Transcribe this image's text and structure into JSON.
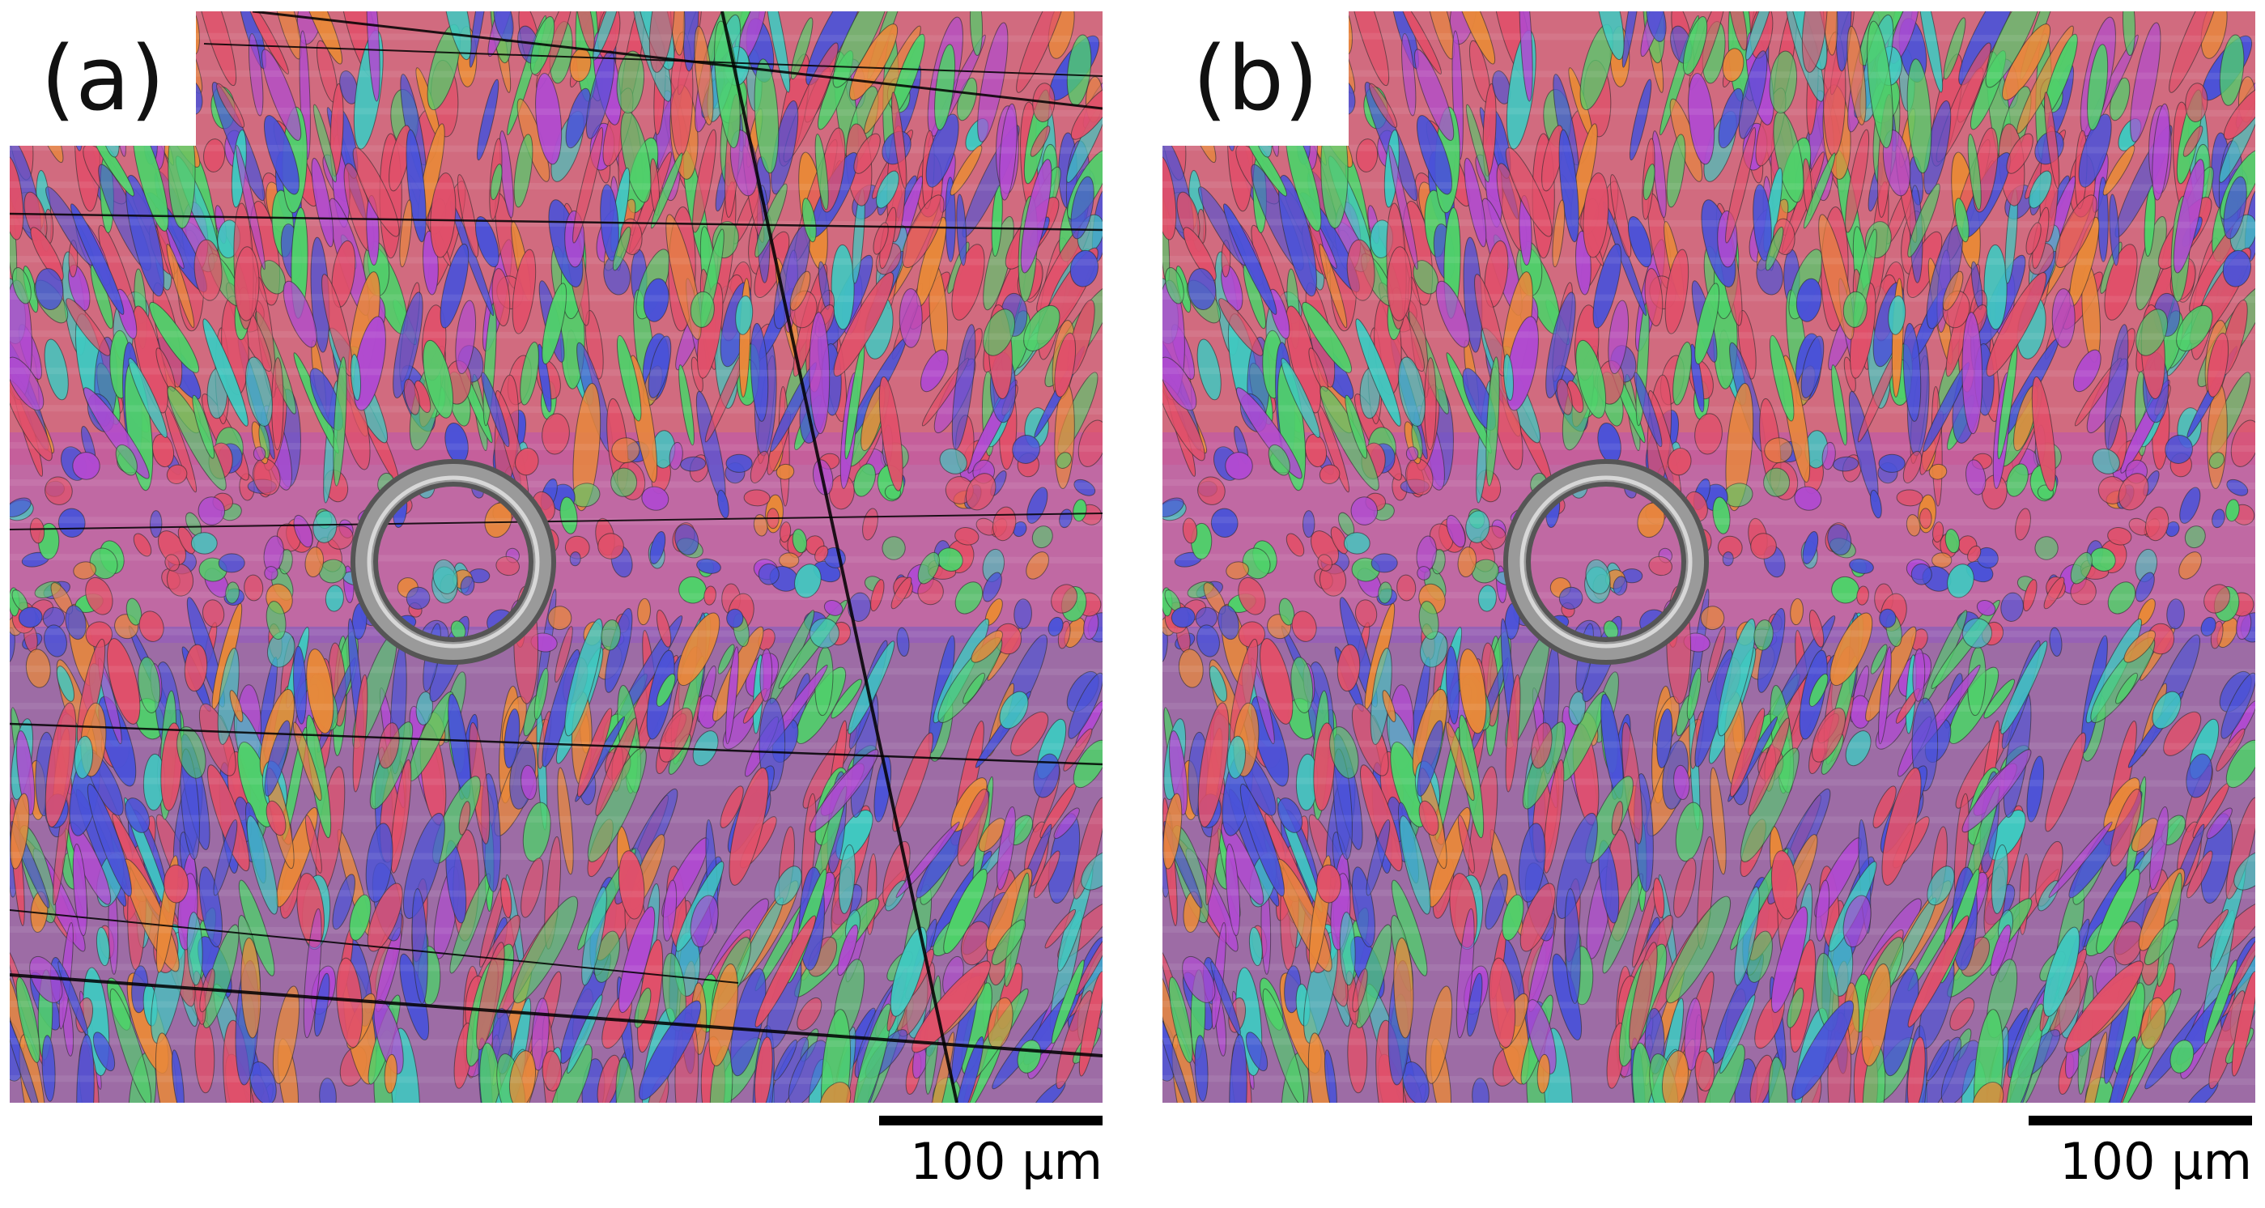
{
  "figure": {
    "panels": [
      {
        "id": "a",
        "label": "(a)",
        "scale_bar": "100 µm",
        "has_artifact_lines": true
      },
      {
        "id": "b",
        "label": "(b)",
        "scale_bar": "100 µm",
        "has_artifact_lines": false
      }
    ],
    "colors": {
      "red": "#e0506a",
      "green": "#4fd06a",
      "blue": "#4a52d8",
      "purple": "#b04ad0",
      "cyan": "#40c8c0",
      "orange": "#e8883a",
      "ring": "#9a9a9a"
    }
  }
}
